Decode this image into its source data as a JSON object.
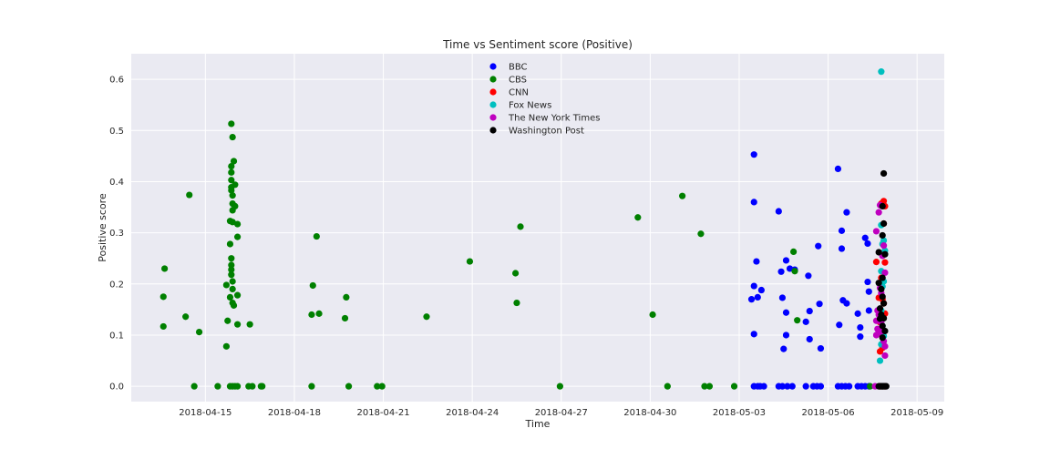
{
  "chart_data": {
    "type": "scatter",
    "title": "Time vs Sentiment score (Positive)",
    "xlabel": "Time",
    "ylabel": "Positive score",
    "x_axis_type": "date",
    "xlim": [
      "2018-04-12T12:00",
      "2018-05-09T22:00"
    ],
    "ylim": [
      -0.03,
      0.65
    ],
    "x_ticks": [
      "2018-04-15",
      "2018-04-18",
      "2018-04-21",
      "2018-04-24",
      "2018-04-27",
      "2018-04-30",
      "2018-05-03",
      "2018-05-06",
      "2018-05-09"
    ],
    "y_ticks": [
      "0.0",
      "0.1",
      "0.2",
      "0.3",
      "0.4",
      "0.5",
      "0.6"
    ],
    "grid": true,
    "legend_position": "upper-center",
    "series": [
      {
        "name": "BBC",
        "color": "#0000ff",
        "points": [
          {
            "x": "2018-05-03T12:00",
            "y": 0.453
          },
          {
            "x": "2018-05-03T12:00",
            "y": 0.36
          },
          {
            "x": "2018-05-03T14:00",
            "y": 0.244
          },
          {
            "x": "2018-05-03T12:00",
            "y": 0.196
          },
          {
            "x": "2018-05-03T18:00",
            "y": 0.188
          },
          {
            "x": "2018-05-03T10:00",
            "y": 0.17
          },
          {
            "x": "2018-05-03T15:00",
            "y": 0.174
          },
          {
            "x": "2018-05-03T12:00",
            "y": 0.102
          },
          {
            "x": "2018-05-04T08:00",
            "y": 0.342
          },
          {
            "x": "2018-05-04T10:00",
            "y": 0.224
          },
          {
            "x": "2018-05-04T14:00",
            "y": 0.246
          },
          {
            "x": "2018-05-04T17:00",
            "y": 0.23
          },
          {
            "x": "2018-05-04T21:00",
            "y": 0.228
          },
          {
            "x": "2018-05-04T11:00",
            "y": 0.173
          },
          {
            "x": "2018-05-04T14:00",
            "y": 0.144
          },
          {
            "x": "2018-05-04T14:00",
            "y": 0.1
          },
          {
            "x": "2018-05-04T12:00",
            "y": 0.073
          },
          {
            "x": "2018-05-05T08:00",
            "y": 0.216
          },
          {
            "x": "2018-05-05T06:00",
            "y": 0.126
          },
          {
            "x": "2018-05-05T09:00",
            "y": 0.147
          },
          {
            "x": "2018-05-05T09:00",
            "y": 0.092
          },
          {
            "x": "2018-05-05T16:00",
            "y": 0.274
          },
          {
            "x": "2018-05-05T17:00",
            "y": 0.161
          },
          {
            "x": "2018-05-05T18:00",
            "y": 0.074
          },
          {
            "x": "2018-05-06T08:00",
            "y": 0.425
          },
          {
            "x": "2018-05-06T11:00",
            "y": 0.304
          },
          {
            "x": "2018-05-06T15:00",
            "y": 0.34
          },
          {
            "x": "2018-05-06T11:00",
            "y": 0.269
          },
          {
            "x": "2018-05-06T12:00",
            "y": 0.168
          },
          {
            "x": "2018-05-06T15:00",
            "y": 0.162
          },
          {
            "x": "2018-05-06T09:00",
            "y": 0.12
          },
          {
            "x": "2018-05-07T00:00",
            "y": 0.142
          },
          {
            "x": "2018-05-07T02:00",
            "y": 0.115
          },
          {
            "x": "2018-05-07T02:00",
            "y": 0.097
          },
          {
            "x": "2018-05-07T06:00",
            "y": 0.29
          },
          {
            "x": "2018-05-07T08:00",
            "y": 0.279
          },
          {
            "x": "2018-05-07T08:00",
            "y": 0.204
          },
          {
            "x": "2018-05-07T09:00",
            "y": 0.185
          },
          {
            "x": "2018-05-07T09:00",
            "y": 0.148
          },
          {
            "x": "2018-05-03T12:00",
            "y": 0
          },
          {
            "x": "2018-05-03T15:00",
            "y": 0
          },
          {
            "x": "2018-05-03T17:00",
            "y": 0
          },
          {
            "x": "2018-05-03T20:00",
            "y": 0
          },
          {
            "x": "2018-05-04T08:00",
            "y": 0
          },
          {
            "x": "2018-05-04T11:00",
            "y": 0
          },
          {
            "x": "2018-05-04T15:00",
            "y": 0
          },
          {
            "x": "2018-05-04T19:00",
            "y": 0
          },
          {
            "x": "2018-05-05T06:00",
            "y": 0
          },
          {
            "x": "2018-05-05T12:00",
            "y": 0
          },
          {
            "x": "2018-05-05T15:00",
            "y": 0
          },
          {
            "x": "2018-05-05T18:00",
            "y": 0
          },
          {
            "x": "2018-05-06T08:00",
            "y": 0
          },
          {
            "x": "2018-05-06T11:00",
            "y": 0
          },
          {
            "x": "2018-05-06T14:00",
            "y": 0
          },
          {
            "x": "2018-05-06T17:00",
            "y": 0
          },
          {
            "x": "2018-05-07T00:00",
            "y": 0
          },
          {
            "x": "2018-05-07T03:00",
            "y": 0
          },
          {
            "x": "2018-05-07T06:00",
            "y": 0
          },
          {
            "x": "2018-05-07T09:00",
            "y": 0
          }
        ]
      },
      {
        "name": "CBS",
        "color": "#008000",
        "points": [
          {
            "x": "2018-04-13T15:00",
            "y": 0.23
          },
          {
            "x": "2018-04-13T14:00",
            "y": 0.175
          },
          {
            "x": "2018-04-13T14:00",
            "y": 0.117
          },
          {
            "x": "2018-04-14T08:00",
            "y": 0.136
          },
          {
            "x": "2018-04-14T11:00",
            "y": 0.374
          },
          {
            "x": "2018-04-14T19:00",
            "y": 0.106
          },
          {
            "x": "2018-04-14T15:00",
            "y": 0
          },
          {
            "x": "2018-04-15T10:00",
            "y": 0
          },
          {
            "x": "2018-04-15T17:00",
            "y": 0.198
          },
          {
            "x": "2018-04-15T17:00",
            "y": 0.078
          },
          {
            "x": "2018-04-15T18:00",
            "y": 0.128
          },
          {
            "x": "2018-04-15T20:00",
            "y": 0.174
          },
          {
            "x": "2018-04-15T20:00",
            "y": 0.278
          },
          {
            "x": "2018-04-15T20:00",
            "y": 0.323
          },
          {
            "x": "2018-04-15T21:00",
            "y": 0.389
          },
          {
            "x": "2018-04-15T21:00",
            "y": 0.403
          },
          {
            "x": "2018-04-15T21:00",
            "y": 0.418
          },
          {
            "x": "2018-04-15T21:00",
            "y": 0.43
          },
          {
            "x": "2018-04-15T21:00",
            "y": 0.513
          },
          {
            "x": "2018-04-15T22:00",
            "y": 0.487
          },
          {
            "x": "2018-04-15T23:00",
            "y": 0.44
          },
          {
            "x": "2018-04-15T21:00",
            "y": 0.383
          },
          {
            "x": "2018-04-15T22:00",
            "y": 0.373
          },
          {
            "x": "2018-04-15T22:00",
            "y": 0.357
          },
          {
            "x": "2018-04-15T22:00",
            "y": 0.344
          },
          {
            "x": "2018-04-15T22:00",
            "y": 0.321
          },
          {
            "x": "2018-04-15T21:00",
            "y": 0.25
          },
          {
            "x": "2018-04-15T21:00",
            "y": 0.237
          },
          {
            "x": "2018-04-15T21:00",
            "y": 0.228
          },
          {
            "x": "2018-04-15T21:00",
            "y": 0.218
          },
          {
            "x": "2018-04-15T22:00",
            "y": 0.205
          },
          {
            "x": "2018-04-15T22:00",
            "y": 0.19
          },
          {
            "x": "2018-04-15T22:00",
            "y": 0.163
          },
          {
            "x": "2018-04-15T23:00",
            "y": 0.158
          },
          {
            "x": "2018-04-16T02:00",
            "y": 0.317
          },
          {
            "x": "2018-04-16T02:00",
            "y": 0.292
          },
          {
            "x": "2018-04-16T02:00",
            "y": 0.178
          },
          {
            "x": "2018-04-16T02:00",
            "y": 0.121
          },
          {
            "x": "2018-04-16T00:00",
            "y": 0.394
          },
          {
            "x": "2018-04-16T00:00",
            "y": 0.352
          },
          {
            "x": "2018-04-16T12:00",
            "y": 0.121
          },
          {
            "x": "2018-04-15T20:00",
            "y": 0
          },
          {
            "x": "2018-04-15T22:00",
            "y": 0
          },
          {
            "x": "2018-04-16T00:00",
            "y": 0
          },
          {
            "x": "2018-04-16T02:00",
            "y": 0
          },
          {
            "x": "2018-04-16T11:00",
            "y": 0
          },
          {
            "x": "2018-04-16T14:00",
            "y": 0
          },
          {
            "x": "2018-04-16T21:00",
            "y": 0
          },
          {
            "x": "2018-04-16T22:00",
            "y": 0
          },
          {
            "x": "2018-04-18T14:00",
            "y": 0.14
          },
          {
            "x": "2018-04-18T15:00",
            "y": 0.197
          },
          {
            "x": "2018-04-18T18:00",
            "y": 0.293
          },
          {
            "x": "2018-04-18T20:00",
            "y": 0.142
          },
          {
            "x": "2018-04-18T14:00",
            "y": 0
          },
          {
            "x": "2018-04-19T17:00",
            "y": 0.133
          },
          {
            "x": "2018-04-19T18:00",
            "y": 0.174
          },
          {
            "x": "2018-04-19T20:00",
            "y": 0
          },
          {
            "x": "2018-04-20T19:00",
            "y": 0
          },
          {
            "x": "2018-04-20T23:00",
            "y": 0
          },
          {
            "x": "2018-04-22T11:00",
            "y": 0.136
          },
          {
            "x": "2018-04-23T22:00",
            "y": 0.244
          },
          {
            "x": "2018-04-25T11:00",
            "y": 0.221
          },
          {
            "x": "2018-04-25T12:00",
            "y": 0.163
          },
          {
            "x": "2018-04-25T15:00",
            "y": 0.312
          },
          {
            "x": "2018-04-26T23:00",
            "y": 0
          },
          {
            "x": "2018-04-29T14:00",
            "y": 0.33
          },
          {
            "x": "2018-04-30T02:00",
            "y": 0.14
          },
          {
            "x": "2018-04-30T14:00",
            "y": 0
          },
          {
            "x": "2018-05-01T02:00",
            "y": 0.372
          },
          {
            "x": "2018-05-01T17:00",
            "y": 0.298
          },
          {
            "x": "2018-05-01T20:00",
            "y": 0
          },
          {
            "x": "2018-05-02T00:00",
            "y": 0
          },
          {
            "x": "2018-05-02T20:00",
            "y": 0
          },
          {
            "x": "2018-05-04T20:00",
            "y": 0.263
          },
          {
            "x": "2018-05-04T21:00",
            "y": 0.225
          },
          {
            "x": "2018-05-04T23:00",
            "y": 0.129
          },
          {
            "x": "2018-05-07T10:00",
            "y": 0
          }
        ]
      },
      {
        "name": "CNN",
        "color": "#ff0000",
        "points": [
          {
            "x": "2018-05-07T15:00",
            "y": 0.243
          },
          {
            "x": "2018-05-07T17:00",
            "y": 0.173
          },
          {
            "x": "2018-05-07T18:00",
            "y": 0.068
          },
          {
            "x": "2018-05-07T19:00",
            "y": 0.357
          },
          {
            "x": "2018-05-07T21:00",
            "y": 0.362
          },
          {
            "x": "2018-05-07T22:00",
            "y": 0.352
          },
          {
            "x": "2018-05-07T21:00",
            "y": 0.318
          },
          {
            "x": "2018-05-07T20:00",
            "y": 0.26
          },
          {
            "x": "2018-05-07T22:00",
            "y": 0.242
          },
          {
            "x": "2018-05-07T19:00",
            "y": 0.212
          },
          {
            "x": "2018-05-07T20:00",
            "y": 0.17
          },
          {
            "x": "2018-05-07T21:00",
            "y": 0.162
          },
          {
            "x": "2018-05-07T22:00",
            "y": 0.142
          },
          {
            "x": "2018-05-07T18:00",
            "y": 0.125
          },
          {
            "x": "2018-05-07T20:00",
            "y": 0.098
          },
          {
            "x": "2018-05-07T20:00",
            "y": 0.075
          },
          {
            "x": "2018-05-07T18:00",
            "y": 0
          },
          {
            "x": "2018-05-07T20:00",
            "y": 0
          },
          {
            "x": "2018-05-07T22:00",
            "y": 0
          }
        ]
      },
      {
        "name": "Fox News",
        "color": "#00bfbf",
        "points": [
          {
            "x": "2018-05-07T19:00",
            "y": 0.615
          },
          {
            "x": "2018-05-07T19:00",
            "y": 0.315
          },
          {
            "x": "2018-05-07T18:00",
            "y": 0.05
          },
          {
            "x": "2018-05-07T20:00",
            "y": 0.278
          },
          {
            "x": "2018-05-07T21:00",
            "y": 0.285
          },
          {
            "x": "2018-05-07T22:00",
            "y": 0.265
          },
          {
            "x": "2018-05-07T22:00",
            "y": 0.258
          },
          {
            "x": "2018-05-07T19:00",
            "y": 0.225
          },
          {
            "x": "2018-05-07T21:00",
            "y": 0.205
          },
          {
            "x": "2018-05-07T20:00",
            "y": 0.195
          },
          {
            "x": "2018-05-07T19:00",
            "y": 0.148
          },
          {
            "x": "2018-05-07T20:00",
            "y": 0.118
          },
          {
            "x": "2018-05-07T21:00",
            "y": 0.098
          },
          {
            "x": "2018-05-07T19:00",
            "y": 0.082
          },
          {
            "x": "2018-05-07T20:00",
            "y": 0
          }
        ]
      },
      {
        "name": "The New York Times",
        "color": "#bf00bf",
        "points": [
          {
            "x": "2018-05-07T15:00",
            "y": 0.303
          },
          {
            "x": "2018-05-07T17:00",
            "y": 0.34
          },
          {
            "x": "2018-05-07T18:00",
            "y": 0.354
          },
          {
            "x": "2018-05-07T22:00",
            "y": 0.222
          },
          {
            "x": "2018-05-07T21:00",
            "y": 0.275
          },
          {
            "x": "2018-05-07T20:00",
            "y": 0.255
          },
          {
            "x": "2018-05-07T18:00",
            "y": 0.192
          },
          {
            "x": "2018-05-07T19:00",
            "y": 0.182
          },
          {
            "x": "2018-05-07T16:00",
            "y": 0.148
          },
          {
            "x": "2018-05-07T17:00",
            "y": 0.14
          },
          {
            "x": "2018-05-07T15:00",
            "y": 0.128
          },
          {
            "x": "2018-05-07T16:00",
            "y": 0.112
          },
          {
            "x": "2018-05-07T15:00",
            "y": 0.1
          },
          {
            "x": "2018-05-07T19:00",
            "y": 0.125
          },
          {
            "x": "2018-05-07T20:00",
            "y": 0.108
          },
          {
            "x": "2018-05-07T21:00",
            "y": 0.088
          },
          {
            "x": "2018-05-07T22:00",
            "y": 0.078
          },
          {
            "x": "2018-05-07T22:00",
            "y": 0.06
          },
          {
            "x": "2018-05-07T17:00",
            "y": 0.105
          },
          {
            "x": "2018-05-07T14:00",
            "y": 0
          }
        ]
      },
      {
        "name": "Washington Post",
        "color": "#000000",
        "points": [
          {
            "x": "2018-05-07T21:00",
            "y": 0.416
          },
          {
            "x": "2018-05-07T20:00",
            "y": 0.352
          },
          {
            "x": "2018-05-07T21:00",
            "y": 0.318
          },
          {
            "x": "2018-05-07T20:00",
            "y": 0.295
          },
          {
            "x": "2018-05-07T17:00",
            "y": 0.262
          },
          {
            "x": "2018-05-07T22:00",
            "y": 0.258
          },
          {
            "x": "2018-05-07T20:00",
            "y": 0.212
          },
          {
            "x": "2018-05-07T17:00",
            "y": 0.202
          },
          {
            "x": "2018-05-07T19:00",
            "y": 0.19
          },
          {
            "x": "2018-05-07T20:00",
            "y": 0.175
          },
          {
            "x": "2018-05-07T21:00",
            "y": 0.162
          },
          {
            "x": "2018-05-07T18:00",
            "y": 0.152
          },
          {
            "x": "2018-05-07T19:00",
            "y": 0.14
          },
          {
            "x": "2018-05-07T21:00",
            "y": 0.133
          },
          {
            "x": "2018-05-07T18:00",
            "y": 0.132
          },
          {
            "x": "2018-05-07T20:00",
            "y": 0.118
          },
          {
            "x": "2018-05-07T22:00",
            "y": 0.108
          },
          {
            "x": "2018-05-07T20:00",
            "y": 0.095
          },
          {
            "x": "2018-05-07T17:00",
            "y": 0
          },
          {
            "x": "2018-05-07T18:00",
            "y": 0
          },
          {
            "x": "2018-05-07T19:00",
            "y": 0
          },
          {
            "x": "2018-05-07T20:00",
            "y": 0
          },
          {
            "x": "2018-05-07T21:00",
            "y": 0
          },
          {
            "x": "2018-05-07T22:00",
            "y": 0
          },
          {
            "x": "2018-05-07T23:00",
            "y": 0
          }
        ]
      }
    ]
  }
}
